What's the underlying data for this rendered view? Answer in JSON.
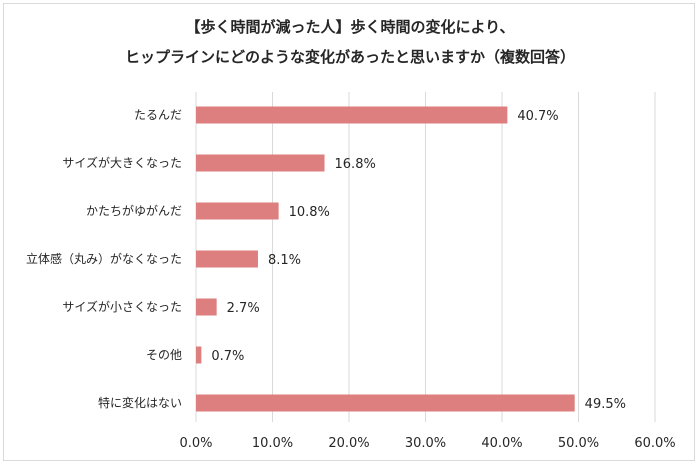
{
  "chart_data": {
    "type": "bar",
    "orientation": "horizontal",
    "title_lines": [
      "【歩く時間が減った人】歩く時間の変化により、",
      "ヒップラインにどのような変化があったと思いますか（複数回答）"
    ],
    "categories": [
      "たるんだ",
      "サイズが大きくなった",
      "かたちがゆがんだ",
      "立体感（丸み）がなくなった",
      "サイズが小さくなった",
      "その他",
      "特に変化はない"
    ],
    "values": [
      40.7,
      16.8,
      10.8,
      8.1,
      2.7,
      0.7,
      49.5
    ],
    "value_labels": [
      "40.7%",
      "16.8%",
      "10.8%",
      "8.1%",
      "2.7%",
      "0.7%",
      "49.5%"
    ],
    "xlim": [
      0,
      60
    ],
    "x_ticks": [
      0,
      10,
      20,
      30,
      40,
      50,
      60
    ],
    "x_tick_labels": [
      "0.0%",
      "10.0%",
      "20.0%",
      "30.0%",
      "40.0%",
      "50.0%",
      "60.0%"
    ],
    "grid": "vertical",
    "legend": "none",
    "bar_color": "#dd7f7f",
    "grid_color": "#d9d9d9"
  }
}
